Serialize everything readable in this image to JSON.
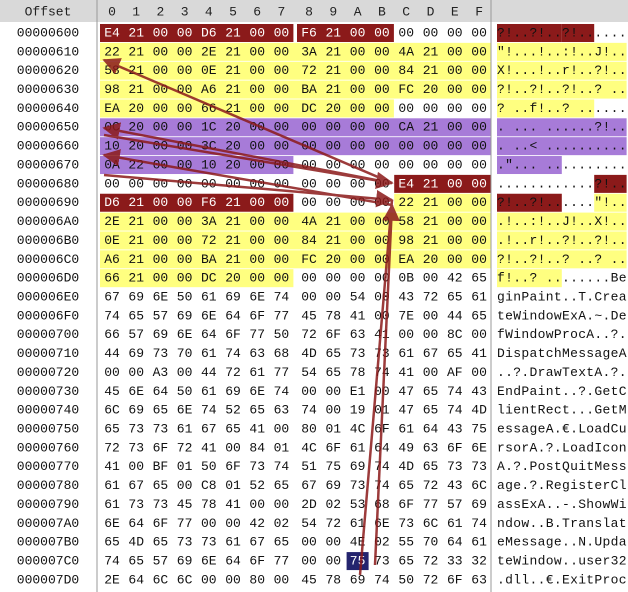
{
  "header": {
    "offset": "Offset",
    "columns": [
      "0",
      "1",
      "2",
      "3",
      "4",
      "5",
      "6",
      "7",
      "8",
      "9",
      "A",
      "B",
      "C",
      "D",
      "E",
      "F"
    ]
  },
  "rows": [
    {
      "offset": "00000600",
      "bytes": [
        "E4",
        "21",
        "00",
        "00",
        "D6",
        "21",
        "00",
        "00",
        "F6",
        "21",
        "00",
        "00",
        "00",
        "00",
        "00",
        "00"
      ],
      "ascii": "?!..?!..?!......"
    },
    {
      "offset": "00000610",
      "bytes": [
        "22",
        "21",
        "00",
        "00",
        "2E",
        "21",
        "00",
        "00",
        "3A",
        "21",
        "00",
        "00",
        "4A",
        "21",
        "00",
        "00"
      ],
      "ascii": "\"!...!..:!..J!.."
    },
    {
      "offset": "00000620",
      "bytes": [
        "58",
        "21",
        "00",
        "00",
        "0E",
        "21",
        "00",
        "00",
        "72",
        "21",
        "00",
        "00",
        "84",
        "21",
        "00",
        "00"
      ],
      "ascii": "X!...!..r!..?!.."
    },
    {
      "offset": "00000630",
      "bytes": [
        "98",
        "21",
        "00",
        "00",
        "A6",
        "21",
        "00",
        "00",
        "BA",
        "21",
        "00",
        "00",
        "FC",
        "20",
        "00",
        "00"
      ],
      "ascii": "?!..?!..?!..? .."
    },
    {
      "offset": "00000640",
      "bytes": [
        "EA",
        "20",
        "00",
        "00",
        "66",
        "21",
        "00",
        "00",
        "DC",
        "20",
        "00",
        "00",
        "00",
        "00",
        "00",
        "00"
      ],
      "ascii": "? ..f!..? ......"
    },
    {
      "offset": "00000650",
      "bytes": [
        "0C",
        "20",
        "00",
        "00",
        "1C",
        "20",
        "00",
        "00",
        "00",
        "00",
        "00",
        "00",
        "CA",
        "21",
        "00",
        "00"
      ],
      "ascii": ". ... ......?!.."
    },
    {
      "offset": "00000660",
      "bytes": [
        "10",
        "20",
        "00",
        "00",
        "3C",
        "20",
        "00",
        "00",
        "00",
        "00",
        "00",
        "00",
        "00",
        "00",
        "00",
        "00"
      ],
      "ascii": ". ..< .........."
    },
    {
      "offset": "00000670",
      "bytes": [
        "0A",
        "22",
        "00",
        "00",
        "10",
        "20",
        "00",
        "00",
        "00",
        "00",
        "00",
        "00",
        "00",
        "00",
        "00",
        "00"
      ],
      "ascii": ".\"... .........."
    },
    {
      "offset": "00000680",
      "bytes": [
        "00",
        "00",
        "00",
        "00",
        "00",
        "00",
        "00",
        "00",
        "00",
        "00",
        "00",
        "00",
        "E4",
        "21",
        "00",
        "00"
      ],
      "ascii": "............?!.."
    },
    {
      "offset": "00000690",
      "bytes": [
        "D6",
        "21",
        "00",
        "00",
        "F6",
        "21",
        "00",
        "00",
        "00",
        "00",
        "00",
        "00",
        "22",
        "21",
        "00",
        "00"
      ],
      "ascii": "?!..?!......\"!.."
    },
    {
      "offset": "000006A0",
      "bytes": [
        "2E",
        "21",
        "00",
        "00",
        "3A",
        "21",
        "00",
        "00",
        "4A",
        "21",
        "00",
        "00",
        "58",
        "21",
        "00",
        "00"
      ],
      "ascii": ".!..:!..J!..X!.."
    },
    {
      "offset": "000006B0",
      "bytes": [
        "0E",
        "21",
        "00",
        "00",
        "72",
        "21",
        "00",
        "00",
        "84",
        "21",
        "00",
        "00",
        "98",
        "21",
        "00",
        "00"
      ],
      "ascii": ".!..r!..?!..?!.."
    },
    {
      "offset": "000006C0",
      "bytes": [
        "A6",
        "21",
        "00",
        "00",
        "BA",
        "21",
        "00",
        "00",
        "FC",
        "20",
        "00",
        "00",
        "EA",
        "20",
        "00",
        "00"
      ],
      "ascii": "?!..?!..? ..? .."
    },
    {
      "offset": "000006D0",
      "bytes": [
        "66",
        "21",
        "00",
        "00",
        "DC",
        "20",
        "00",
        "00",
        "00",
        "00",
        "00",
        "00",
        "0B",
        "00",
        "42",
        "65"
      ],
      "ascii": "f!..? ........Be"
    },
    {
      "offset": "000006E0",
      "bytes": [
        "67",
        "69",
        "6E",
        "50",
        "61",
        "69",
        "6E",
        "74",
        "00",
        "00",
        "54",
        "00",
        "43",
        "72",
        "65",
        "61"
      ],
      "ascii": "ginPaint..T.Crea"
    },
    {
      "offset": "000006F0",
      "bytes": [
        "74",
        "65",
        "57",
        "69",
        "6E",
        "64",
        "6F",
        "77",
        "45",
        "78",
        "41",
        "00",
        "7E",
        "00",
        "44",
        "65"
      ],
      "ascii": "teWindowExA.~.De"
    },
    {
      "offset": "00000700",
      "bytes": [
        "66",
        "57",
        "69",
        "6E",
        "64",
        "6F",
        "77",
        "50",
        "72",
        "6F",
        "63",
        "41",
        "00",
        "00",
        "8C",
        "00"
      ],
      "ascii": "fWindowProcA..?."
    },
    {
      "offset": "00000710",
      "bytes": [
        "44",
        "69",
        "73",
        "70",
        "61",
        "74",
        "63",
        "68",
        "4D",
        "65",
        "73",
        "73",
        "61",
        "67",
        "65",
        "41"
      ],
      "ascii": "DispatchMessageA"
    },
    {
      "offset": "00000720",
      "bytes": [
        "00",
        "00",
        "A3",
        "00",
        "44",
        "72",
        "61",
        "77",
        "54",
        "65",
        "78",
        "74",
        "41",
        "00",
        "AF",
        "00"
      ],
      "ascii": "..?.DrawTextA.?."
    },
    {
      "offset": "00000730",
      "bytes": [
        "45",
        "6E",
        "64",
        "50",
        "61",
        "69",
        "6E",
        "74",
        "00",
        "00",
        "E1",
        "00",
        "47",
        "65",
        "74",
        "43"
      ],
      "ascii": "EndPaint..?.GetC"
    },
    {
      "offset": "00000740",
      "bytes": [
        "6C",
        "69",
        "65",
        "6E",
        "74",
        "52",
        "65",
        "63",
        "74",
        "00",
        "19",
        "01",
        "47",
        "65",
        "74",
        "4D"
      ],
      "ascii": "lientRect...GetM"
    },
    {
      "offset": "00000750",
      "bytes": [
        "65",
        "73",
        "73",
        "61",
        "67",
        "65",
        "41",
        "00",
        "80",
        "01",
        "4C",
        "6F",
        "61",
        "64",
        "43",
        "75"
      ],
      "ascii": "essageA.€.LoadCu"
    },
    {
      "offset": "00000760",
      "bytes": [
        "72",
        "73",
        "6F",
        "72",
        "41",
        "00",
        "84",
        "01",
        "4C",
        "6F",
        "61",
        "64",
        "49",
        "63",
        "6F",
        "6E"
      ],
      "ascii": "rsorA.?.LoadIcon"
    },
    {
      "offset": "00000770",
      "bytes": [
        "41",
        "00",
        "BF",
        "01",
        "50",
        "6F",
        "73",
        "74",
        "51",
        "75",
        "69",
        "74",
        "4D",
        "65",
        "73",
        "73"
      ],
      "ascii": "A.?.PostQuitMess"
    },
    {
      "offset": "00000780",
      "bytes": [
        "61",
        "67",
        "65",
        "00",
        "C8",
        "01",
        "52",
        "65",
        "67",
        "69",
        "73",
        "74",
        "65",
        "72",
        "43",
        "6C"
      ],
      "ascii": "age.?.RegisterCl"
    },
    {
      "offset": "00000790",
      "bytes": [
        "61",
        "73",
        "73",
        "45",
        "78",
        "41",
        "00",
        "00",
        "2D",
        "02",
        "53",
        "68",
        "6F",
        "77",
        "57",
        "69"
      ],
      "ascii": "assExA..-.ShowWi"
    },
    {
      "offset": "000007A0",
      "bytes": [
        "6E",
        "64",
        "6F",
        "77",
        "00",
        "00",
        "42",
        "02",
        "54",
        "72",
        "61",
        "6E",
        "73",
        "6C",
        "61",
        "74"
      ],
      "ascii": "ndow..B.Translat"
    },
    {
      "offset": "000007B0",
      "bytes": [
        "65",
        "4D",
        "65",
        "73",
        "73",
        "61",
        "67",
        "65",
        "00",
        "00",
        "4E",
        "02",
        "55",
        "70",
        "64",
        "61"
      ],
      "ascii": "eMessage..N.Upda"
    },
    {
      "offset": "000007C0",
      "bytes": [
        "74",
        "65",
        "57",
        "69",
        "6E",
        "64",
        "6F",
        "77",
        "00",
        "00",
        "75",
        "73",
        "65",
        "72",
        "33",
        "32"
      ],
      "ascii": "teWindow..user32"
    },
    {
      "offset": "000007D0",
      "bytes": [
        "2E",
        "64",
        "6C",
        "6C",
        "00",
        "00",
        "80",
        "00",
        "45",
        "78",
        "69",
        "74",
        "50",
        "72",
        "6F",
        "63"
      ],
      "ascii": ".dll..€.ExitProc"
    }
  ]
}
